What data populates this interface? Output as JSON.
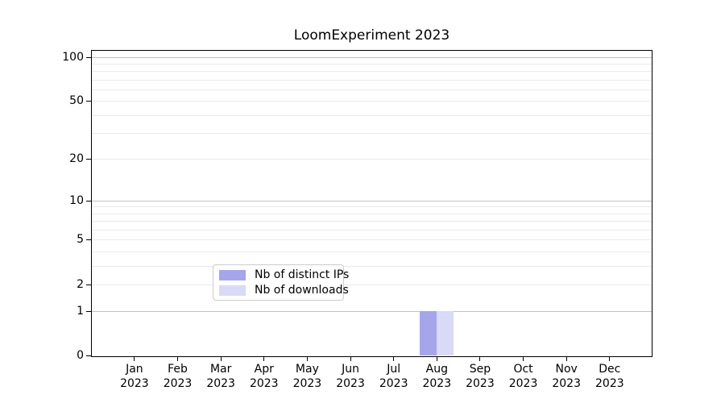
{
  "chart_data": {
    "type": "bar",
    "title": "LoomExperiment 2023",
    "x": [
      {
        "month": "Jan",
        "year": "2023"
      },
      {
        "month": "Feb",
        "year": "2023"
      },
      {
        "month": "Mar",
        "year": "2023"
      },
      {
        "month": "Apr",
        "year": "2023"
      },
      {
        "month": "May",
        "year": "2023"
      },
      {
        "month": "Jun",
        "year": "2023"
      },
      {
        "month": "Jul",
        "year": "2023"
      },
      {
        "month": "Aug",
        "year": "2023"
      },
      {
        "month": "Sep",
        "year": "2023"
      },
      {
        "month": "Oct",
        "year": "2023"
      },
      {
        "month": "Nov",
        "year": "2023"
      },
      {
        "month": "Dec",
        "year": "2023"
      }
    ],
    "series": [
      {
        "name": "Nb of distinct IPs",
        "color": "#a5a5ec",
        "values": [
          0,
          0,
          0,
          0,
          0,
          0,
          0,
          1,
          0,
          0,
          0,
          0
        ]
      },
      {
        "name": "Nb of downloads",
        "color": "#d9d9f8",
        "values": [
          0,
          0,
          0,
          0,
          0,
          0,
          0,
          1,
          0,
          0,
          0,
          0
        ]
      }
    ],
    "y_axis": {
      "scale": "log1p",
      "tick_values": [
        0,
        1,
        2,
        5,
        10,
        20,
        50,
        100
      ],
      "range": [
        0,
        113
      ]
    },
    "grid": {
      "orientation": "horizontal",
      "major_values": [
        1,
        10,
        100
      ],
      "minor_values": [
        2,
        3,
        4,
        5,
        6,
        7,
        8,
        9,
        20,
        30,
        40,
        50,
        60,
        70,
        80,
        90
      ]
    },
    "legend": {
      "position": "lower-center",
      "frame": true
    }
  },
  "colors": {
    "major_grid": "#c3c3c3",
    "minor_grid": "#eaeaea",
    "spine": "#000000",
    "text": "#000000",
    "legend_border": "#cccccc",
    "bar_distinct_ips": "#a5a5ec",
    "bar_downloads": "#d9d9f8"
  }
}
